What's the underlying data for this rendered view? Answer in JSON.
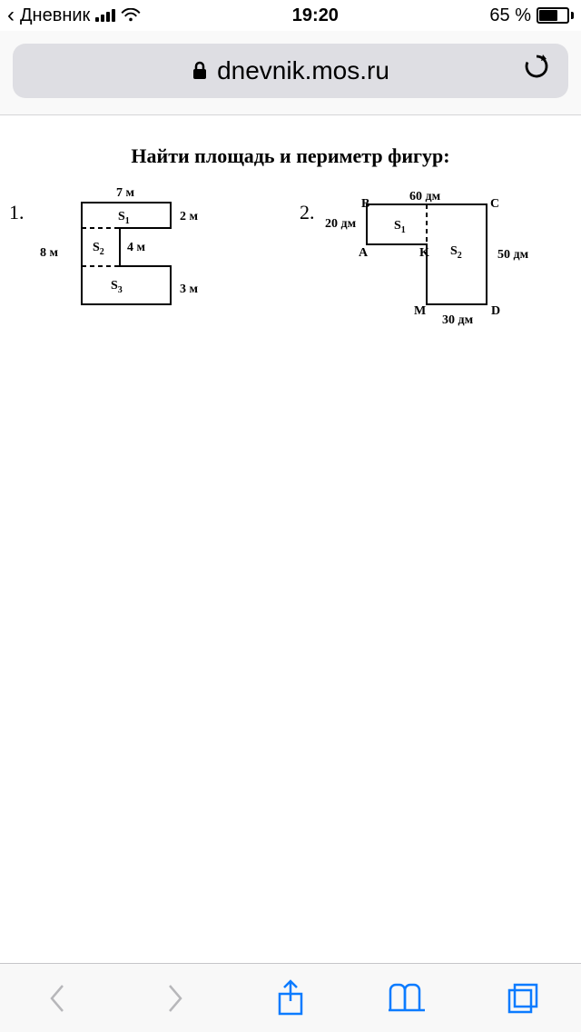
{
  "statusbar": {
    "back_app": "Дневник",
    "time": "19:20",
    "battery_percent": "65 %",
    "battery_fill_pct": 65,
    "signal_bars": [
      5,
      8,
      11,
      14
    ]
  },
  "urlbar": {
    "domain": "dnevnik.mos.ru"
  },
  "content": {
    "title": "Найти площадь и периметр фигур:",
    "problem1": {
      "number": "1.",
      "labels": {
        "top": "7 м",
        "right_top": "2 м",
        "inner": "4 м",
        "right_bottom": "3 м",
        "left": "8 м",
        "s1": "S",
        "s1_sub": "1",
        "s2": "S",
        "s2_sub": "2",
        "s3": "S",
        "s3_sub": "3"
      },
      "geometry": {
        "scale": 14,
        "bg": "#ffffff",
        "stroke": "#000000",
        "stroke_width": 2
      }
    },
    "problem2": {
      "number": "2.",
      "labels": {
        "B": "B",
        "C": "C",
        "A": "A",
        "K": "K",
        "D": "D",
        "M": "M",
        "top": "60 дм",
        "left": "20 дм",
        "right": "50 дм",
        "bottom": "30 дм",
        "s1": "S",
        "s1_sub": "1",
        "s2": "S",
        "s2_sub": "2"
      },
      "geometry": {
        "scale": 2.2,
        "stroke": "#000000",
        "stroke_width": 2
      }
    }
  },
  "colors": {
    "ios_blue": "#0b7bff",
    "disabled_gray": "#b7b7ba",
    "urlbar_bg": "#dedee3",
    "chrome_bg": "#f8f8f8",
    "divider": "#c6c6c9"
  }
}
